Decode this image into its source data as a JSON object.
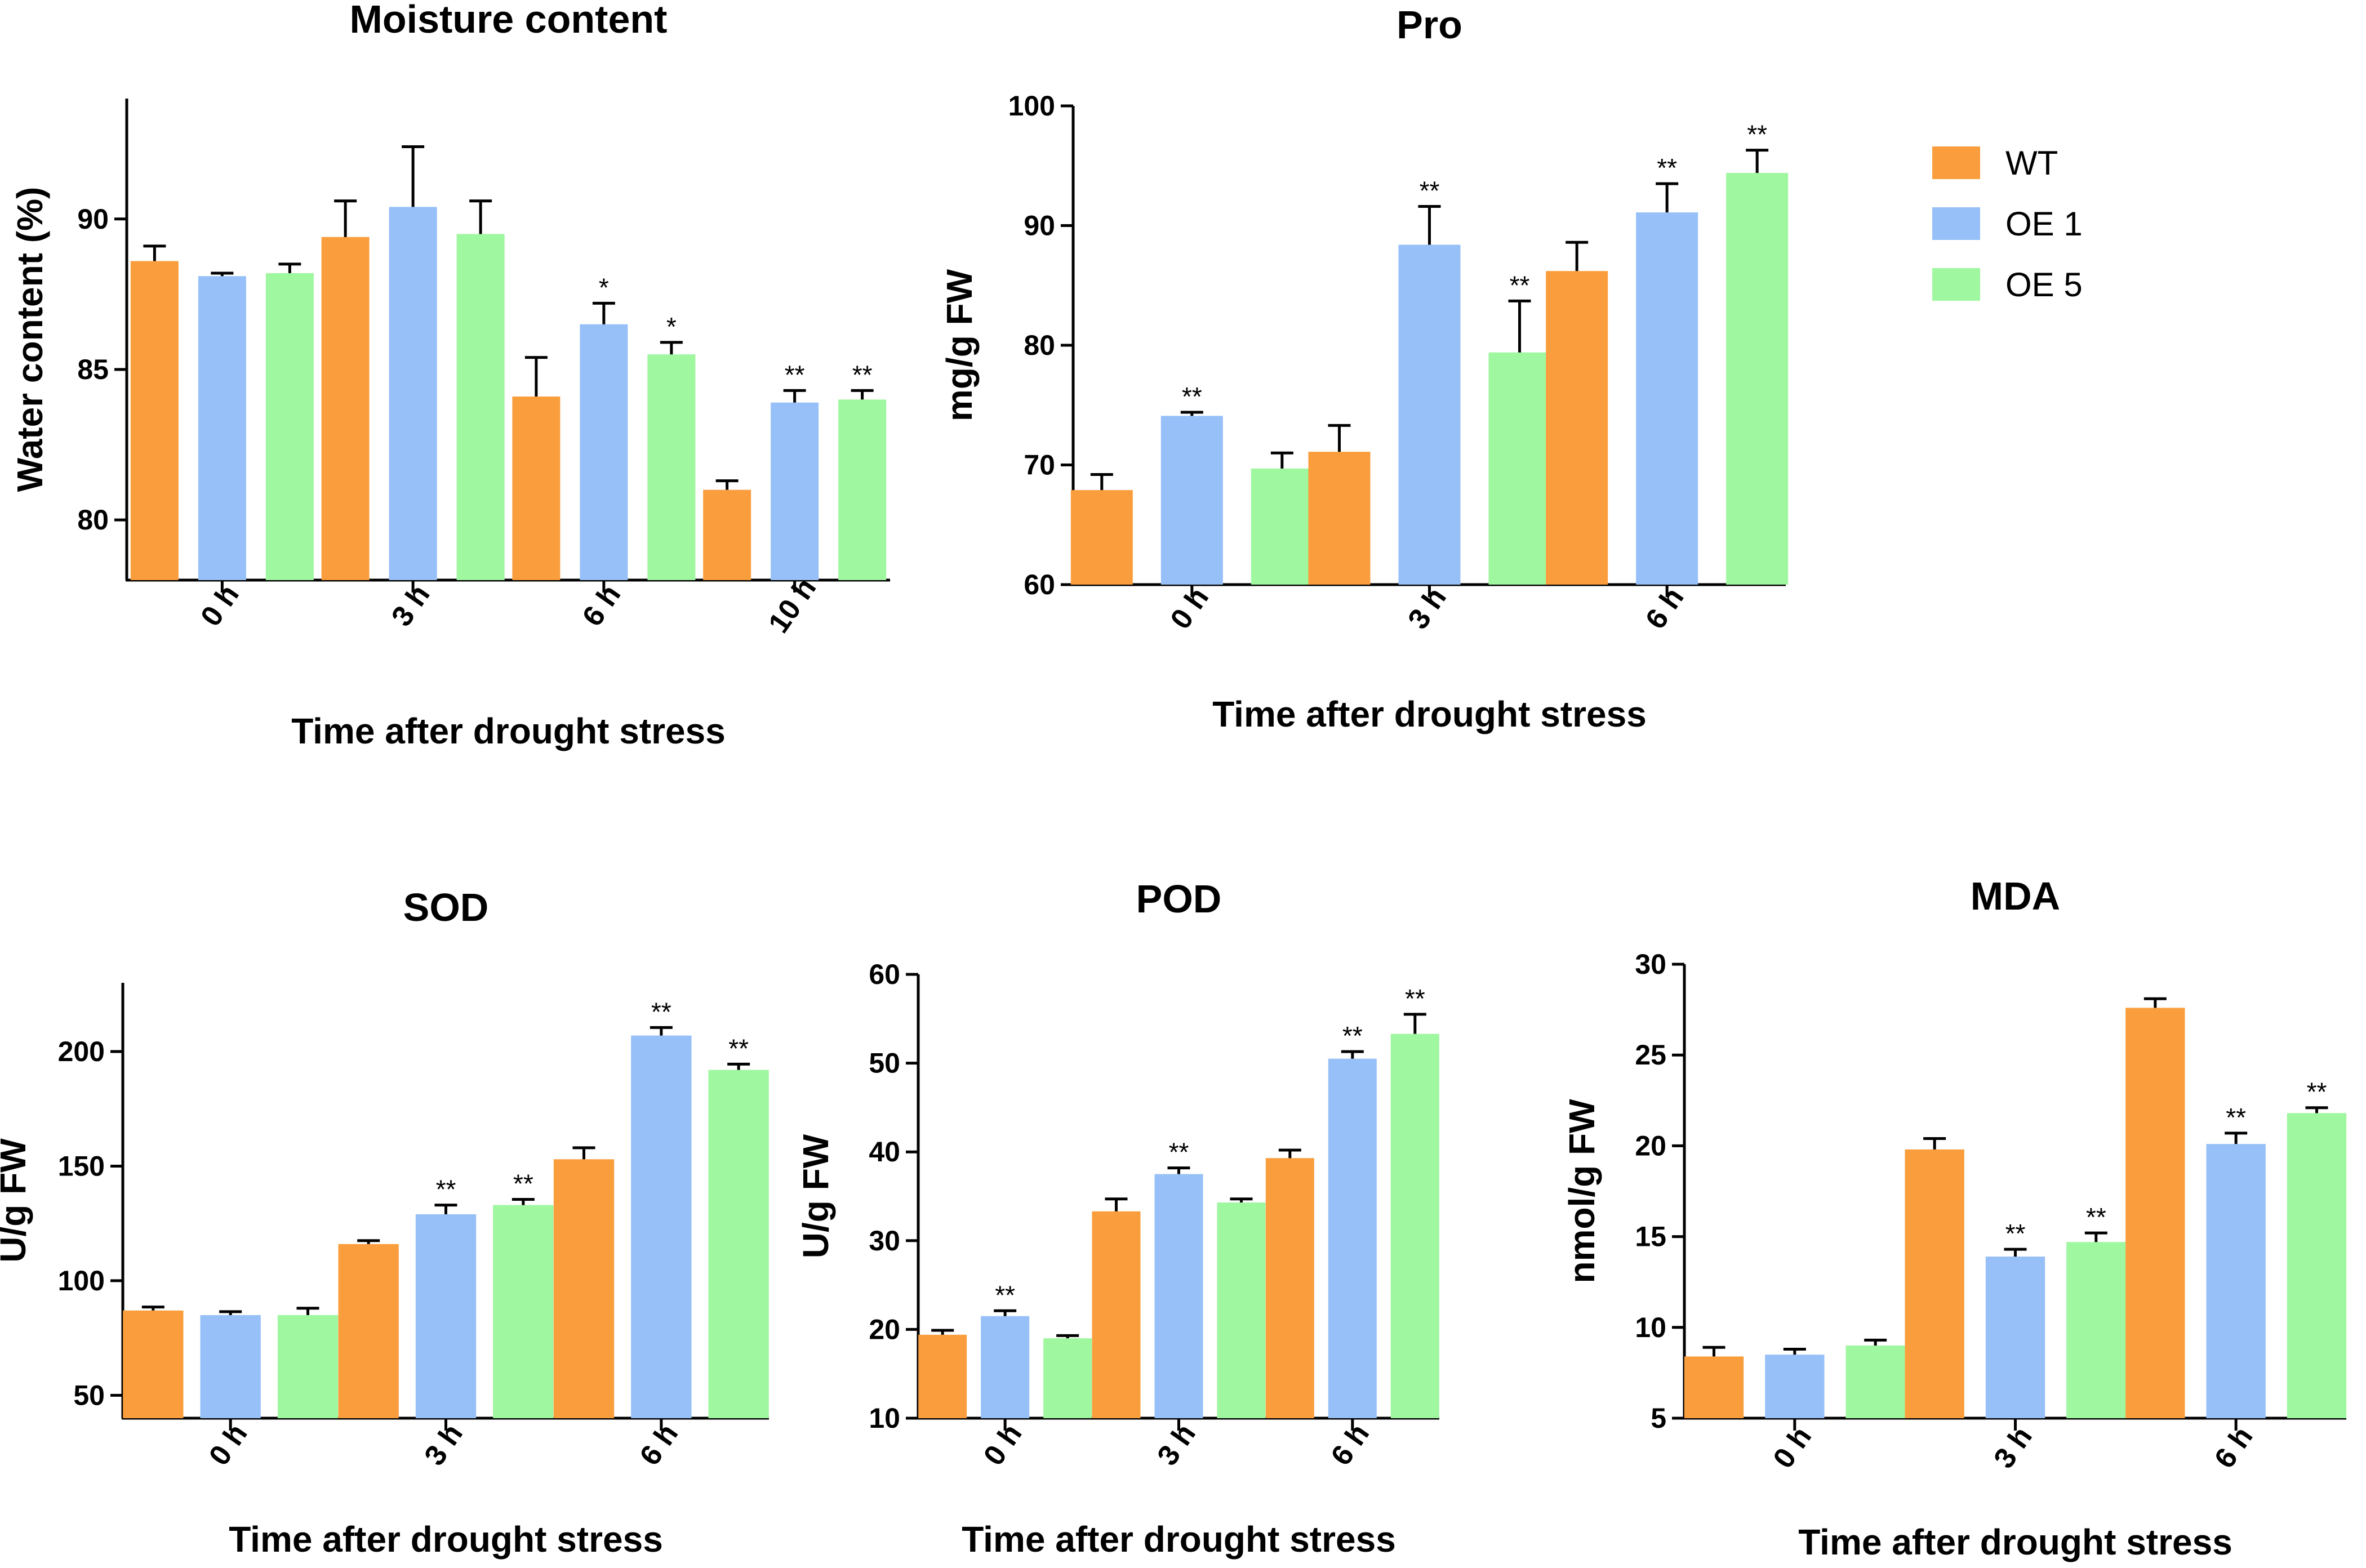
{
  "legend": [
    {
      "name": "WT",
      "color": "#FA9E3D"
    },
    {
      "name": "OE 1",
      "color": "#96C0F7"
    },
    {
      "name": "OE 5",
      "color": "#9FF79F"
    }
  ],
  "chart_data": [
    {
      "type": "bar",
      "title": "Moisture content",
      "xlabel": "Time after drought stress",
      "ylabel": "Water content (%)",
      "ylim": [
        78,
        94
      ],
      "yticks": [
        80,
        85,
        90
      ],
      "categories": [
        "0 h",
        "3 h",
        "6 h",
        "10 h"
      ],
      "series": [
        {
          "name": "WT",
          "values": [
            88.6,
            89.4,
            84.1,
            81.0
          ],
          "errors": [
            0.5,
            1.2,
            1.3,
            0.3
          ],
          "sig": [
            "",
            "",
            "",
            ""
          ]
        },
        {
          "name": "OE 1",
          "values": [
            88.1,
            90.4,
            86.5,
            83.9
          ],
          "errors": [
            0.1,
            2.0,
            0.7,
            0.4
          ],
          "sig": [
            "",
            "",
            "*",
            "**"
          ]
        },
        {
          "name": "OE 5",
          "values": [
            88.2,
            89.5,
            85.5,
            84.0
          ],
          "errors": [
            0.3,
            1.1,
            0.4,
            0.3
          ],
          "sig": [
            "",
            "",
            "*",
            "**"
          ]
        }
      ]
    },
    {
      "type": "bar",
      "title": "Pro",
      "xlabel": "Time after drought stress",
      "ylabel": "mg/g FW",
      "ylim": [
        60,
        100
      ],
      "yticks": [
        60,
        70,
        80,
        90,
        100
      ],
      "categories": [
        "0 h",
        "3 h",
        "6 h"
      ],
      "series": [
        {
          "name": "WT",
          "values": [
            67.9,
            71.1,
            86.2
          ],
          "errors": [
            1.3,
            2.2,
            2.4
          ],
          "sig": [
            "",
            "",
            ""
          ]
        },
        {
          "name": "OE 1",
          "values": [
            74.1,
            88.4,
            91.1
          ],
          "errors": [
            0.3,
            3.2,
            2.4
          ],
          "sig": [
            "**",
            "**",
            "**"
          ]
        },
        {
          "name": "OE 5",
          "values": [
            69.7,
            79.4,
            94.4
          ],
          "errors": [
            1.3,
            4.3,
            1.9
          ],
          "sig": [
            "",
            "**",
            "**"
          ]
        }
      ]
    },
    {
      "type": "bar",
      "title": "SOD",
      "xlabel": "Time after drought stress",
      "ylabel": "U/g FW",
      "ylim": [
        40,
        230
      ],
      "yticks": [
        50,
        100,
        150,
        200
      ],
      "categories": [
        "0 h",
        "3 h",
        "6 h"
      ],
      "series": [
        {
          "name": "WT",
          "values": [
            87,
            116,
            153
          ],
          "errors": [
            1.5,
            1.5,
            5
          ],
          "sig": [
            "",
            "",
            ""
          ]
        },
        {
          "name": "OE 1",
          "values": [
            85,
            129,
            207
          ],
          "errors": [
            1.5,
            4,
            3.5
          ],
          "sig": [
            "",
            "**",
            "**"
          ]
        },
        {
          "name": "OE 5",
          "values": [
            85,
            133,
            192
          ],
          "errors": [
            3,
            2.5,
            2.5
          ],
          "sig": [
            "",
            "**",
            "**"
          ]
        }
      ]
    },
    {
      "type": "bar",
      "title": "POD",
      "xlabel": "Time after drought stress",
      "ylabel": "U/g FW",
      "ylim": [
        10,
        60
      ],
      "yticks": [
        10,
        20,
        30,
        40,
        50,
        60
      ],
      "categories": [
        "0 h",
        "3 h",
        "6 h"
      ],
      "series": [
        {
          "name": "WT",
          "values": [
            19.4,
            33.3,
            39.3
          ],
          "errors": [
            0.5,
            1.4,
            0.9
          ],
          "sig": [
            "",
            "",
            ""
          ]
        },
        {
          "name": "OE 1",
          "values": [
            21.5,
            37.5,
            50.5
          ],
          "errors": [
            0.6,
            0.7,
            0.8
          ],
          "sig": [
            "**",
            "**",
            "**"
          ]
        },
        {
          "name": "OE 5",
          "values": [
            19.0,
            34.3,
            53.3
          ],
          "errors": [
            0.3,
            0.4,
            2.2
          ],
          "sig": [
            "",
            "",
            "**"
          ]
        }
      ]
    },
    {
      "type": "bar",
      "title": "MDA",
      "xlabel": "Time after drought stress",
      "ylabel": "nmol/g FW",
      "ylim": [
        5,
        30
      ],
      "yticks": [
        5,
        10,
        15,
        20,
        25,
        30
      ],
      "categories": [
        "0 h",
        "3 h",
        "6 h"
      ],
      "series": [
        {
          "name": "WT",
          "values": [
            8.4,
            19.8,
            27.6
          ],
          "errors": [
            0.5,
            0.6,
            0.5
          ],
          "sig": [
            "",
            "",
            ""
          ]
        },
        {
          "name": "OE 1",
          "values": [
            8.5,
            13.9,
            20.1
          ],
          "errors": [
            0.3,
            0.4,
            0.6
          ],
          "sig": [
            "",
            "**",
            "**"
          ]
        },
        {
          "name": "OE 5",
          "values": [
            9.0,
            14.7,
            21.8
          ],
          "errors": [
            0.3,
            0.5,
            0.3
          ],
          "sig": [
            "",
            "**",
            "**"
          ]
        }
      ]
    }
  ]
}
